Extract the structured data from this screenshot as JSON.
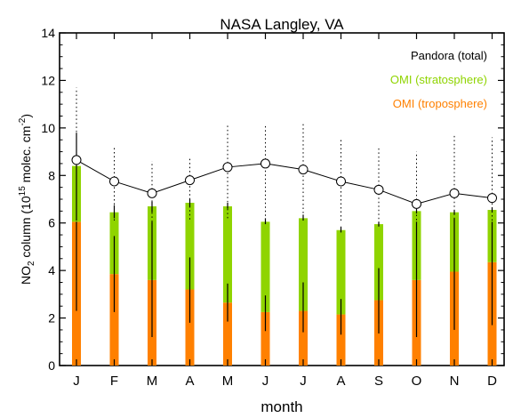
{
  "chart_data": {
    "type": "bar",
    "title": "NASA Langley, VA",
    "xlabel": "month",
    "ylabel": {
      "prefix": "NO",
      "sub": "2",
      "mid": " column (10",
      "sup1": "15",
      "mid2": " molec. cm",
      "sup2": "-2",
      "suffix": ")"
    },
    "ylim": [
      0,
      14
    ],
    "yticks": [
      0,
      2,
      4,
      6,
      8,
      10,
      12,
      14
    ],
    "categories": [
      "J",
      "F",
      "M",
      "A",
      "M",
      "J",
      "J",
      "A",
      "S",
      "O",
      "N",
      "D"
    ],
    "legend": {
      "placement": "top-right",
      "entries": [
        {
          "label": "Pandora (total)",
          "color": "#000000"
        },
        {
          "label": "OMI (stratosphere)",
          "color": "#8fd400"
        },
        {
          "label": "OMI (troposphere)",
          "color": "#ff8000"
        }
      ]
    },
    "series": [
      {
        "name": "OMI (troposphere)",
        "color": "#ff8000",
        "values": [
          6.05,
          3.85,
          3.6,
          3.2,
          2.65,
          2.25,
          2.3,
          2.15,
          2.75,
          3.6,
          3.95,
          4.35
        ],
        "err_low": [
          2.3,
          2.25,
          1.2,
          1.8,
          1.85,
          1.45,
          1.4,
          1.3,
          1.35,
          1.2,
          1.5,
          1.7
        ],
        "err_high": [
          6.05,
          5.45,
          6.05,
          4.55,
          3.45,
          2.95,
          3.5,
          2.8,
          4.1,
          6.05,
          6.2,
          6.05
        ]
      },
      {
        "name": "OMI (stratosphere)",
        "color": "#8fd400",
        "values": [
          2.35,
          2.6,
          3.1,
          3.65,
          4.05,
          3.8,
          3.9,
          3.55,
          3.2,
          2.9,
          2.5,
          2.2
        ],
        "total": [
          8.4,
          6.45,
          6.7,
          6.85,
          6.7,
          6.05,
          6.2,
          5.7,
          5.95,
          6.5,
          6.45,
          6.55
        ],
        "err_low": [
          6.1,
          6.2,
          6.45,
          6.65,
          6.6,
          5.95,
          6.1,
          5.6,
          5.85,
          6.4,
          6.35,
          6.45
        ],
        "err_high": [
          9.8,
          6.75,
          6.9,
          7.0,
          6.85,
          6.2,
          6.35,
          5.85,
          6.05,
          6.6,
          6.55,
          6.65
        ]
      },
      {
        "name": "Pandora (total)",
        "color": "#000000",
        "values": [
          8.65,
          7.75,
          7.25,
          7.8,
          8.35,
          8.5,
          8.25,
          7.75,
          7.4,
          6.8,
          7.25,
          7.05
        ],
        "err_low": [
          6.0,
          6.1,
          6.05,
          6.15,
          6.2,
          6.3,
          6.25,
          6.1,
          6.0,
          5.95,
          6.0,
          6.1
        ],
        "err_high": [
          11.7,
          9.25,
          8.6,
          8.75,
          10.15,
          10.15,
          10.2,
          9.55,
          9.25,
          9.0,
          9.75,
          9.6
        ]
      }
    ],
    "grid": false
  }
}
